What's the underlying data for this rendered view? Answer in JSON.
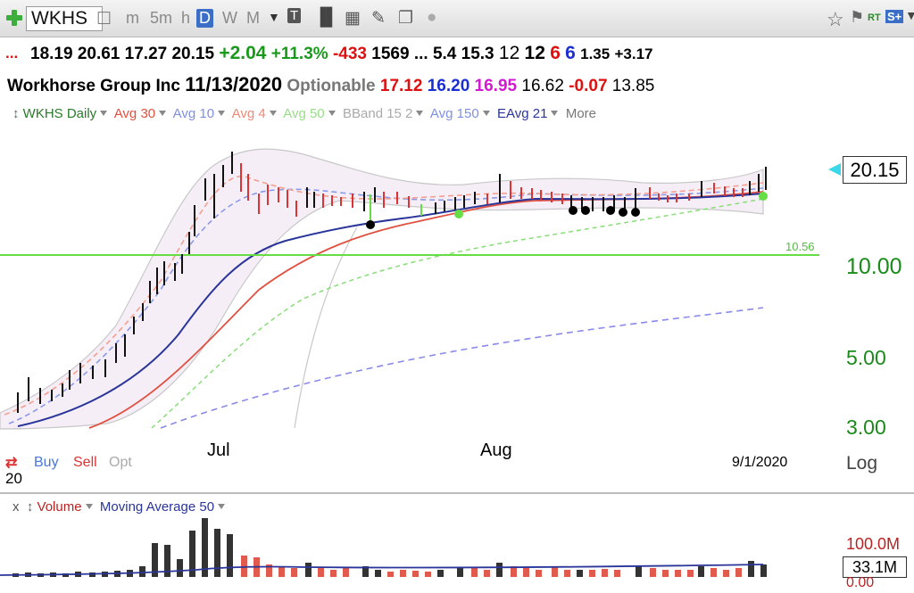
{
  "toolbar": {
    "symbol": "WKHS",
    "timeframes": [
      "m",
      "5m",
      "h",
      "D",
      "W",
      "M"
    ],
    "active_timeframe": "D"
  },
  "quote_row1": {
    "open": "18.19",
    "high": "20.61",
    "low": "17.27",
    "close": "20.15",
    "change": "+2.04",
    "change_pct": "+11.3%",
    "v1": "-433",
    "v2": "1569",
    "ellipsis": "...",
    "v3": "5.4",
    "v4": "15.3",
    "v5": "12",
    "v6": "12",
    "v7": "6",
    "v8": "6",
    "v9": "1.35",
    "v10": "+3.17"
  },
  "quote_row2": {
    "company": "Workhorse Group Inc",
    "date": "11/13/2020",
    "optionable": "Optionable",
    "p1": "17.12",
    "p2": "16.20",
    "p3": "16.95",
    "p4": "16.62",
    "p5": "-0.07",
    "p6": "13.85"
  },
  "legend": {
    "chart": "WKHS Daily",
    "avg30": "Avg 30",
    "avg10": "Avg 10",
    "avg4": "Avg 4",
    "avg50": "Avg 50",
    "bband": "BBand 15 2",
    "avg150": "Avg 150",
    "eavg21": "EAvg 21",
    "more": "More"
  },
  "price_axis": {
    "last": "20.15",
    "l10": "10.00",
    "l5": "5.00",
    "l3": "3.00",
    "log": "Log"
  },
  "gmma_label": "10.56",
  "x_axis": {
    "jul": "Jul",
    "aug": "Aug",
    "date": "9/1/2020"
  },
  "trade": {
    "buy": "Buy",
    "sell": "Sell",
    "opt": "Opt",
    "left_num": "20"
  },
  "volume": {
    "x": "x",
    "title": "Volume",
    "ma": "Moving Average 50",
    "top_label": "100.0M",
    "current": "33.1M",
    "zero": "0.00"
  },
  "colors": {
    "green_line": "#66dd44",
    "avg30": "#e05040",
    "avg10": "#8090e0",
    "ema": "#2a3599"
  }
}
